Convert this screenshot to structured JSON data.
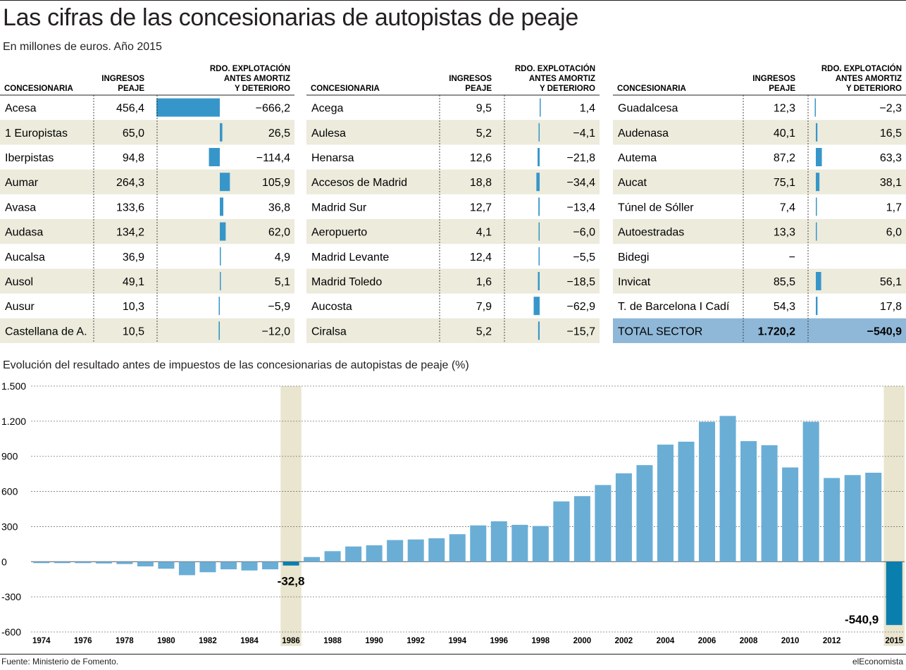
{
  "title": "Las cifras de las concesionarias de autopistas de peaje",
  "subtitle": "En millones de euros. Año 2015",
  "table_headers": {
    "name": "CONCESIONARIA",
    "revenue": [
      "INGRESOS",
      "PEAJE"
    ],
    "result": [
      "RDO. EXPLOTACIÓN",
      "ANTES AMORTIZ",
      "Y DETERIORO"
    ]
  },
  "tables": [
    {
      "rows": [
        {
          "name": "Acesa",
          "revenue": "456,4",
          "result": "−666,2",
          "value": -666.2
        },
        {
          "name": "1 Europistas",
          "revenue": "65,0",
          "result": "26,5",
          "value": 26.5
        },
        {
          "name": "Iberpistas",
          "revenue": "94,8",
          "result": "−114,4",
          "value": -114.4
        },
        {
          "name": "Aumar",
          "revenue": "264,3",
          "result": "105,9",
          "value": 105.9
        },
        {
          "name": "Avasa",
          "revenue": "133,6",
          "result": "36,8",
          "value": 36.8
        },
        {
          "name": "Audasa",
          "revenue": "134,2",
          "result": "62,0",
          "value": 62.0
        },
        {
          "name": "Aucalsa",
          "revenue": "36,9",
          "result": "4,9",
          "value": 4.9
        },
        {
          "name": "Ausol",
          "revenue": "49,1",
          "result": "5,1",
          "value": 5.1
        },
        {
          "name": "Ausur",
          "revenue": "10,3",
          "result": "−5,9",
          "value": -5.9
        },
        {
          "name": "Castellana de A.",
          "revenue": "10,5",
          "result": "−12,0",
          "value": -12.0
        }
      ]
    },
    {
      "rows": [
        {
          "name": "Acega",
          "revenue": "9,5",
          "result": "1,4",
          "value": 1.4
        },
        {
          "name": "Aulesa",
          "revenue": "5,2",
          "result": "−4,1",
          "value": -4.1
        },
        {
          "name": "Henarsa",
          "revenue": "12,6",
          "result": "−21,8",
          "value": -21.8
        },
        {
          "name": "Accesos de Madrid",
          "revenue": "18,8",
          "result": "−34,4",
          "value": -34.4
        },
        {
          "name": "Madrid Sur",
          "revenue": "12,7",
          "result": "−13,4",
          "value": -13.4
        },
        {
          "name": "Aeropuerto",
          "revenue": "4,1",
          "result": "−6,0",
          "value": -6.0
        },
        {
          "name": "Madrid Levante",
          "revenue": "12,4",
          "result": "−5,5",
          "value": -5.5
        },
        {
          "name": "Madrid Toledo",
          "revenue": "1,6",
          "result": "−18,5",
          "value": -18.5
        },
        {
          "name": "Aucosta",
          "revenue": "7,9",
          "result": "−62,9",
          "value": -62.9
        },
        {
          "name": "Ciralsa",
          "revenue": "5,2",
          "result": "−15,7",
          "value": -15.7
        }
      ]
    },
    {
      "rows": [
        {
          "name": "Guadalcesa",
          "revenue": "12,3",
          "result": "−2,3",
          "value": -2.3
        },
        {
          "name": "Audenasa",
          "revenue": "40,1",
          "result": "16,5",
          "value": 16.5
        },
        {
          "name": "Autema",
          "revenue": "87,2",
          "result": "63,3",
          "value": 63.3
        },
        {
          "name": "Aucat",
          "revenue": "75,1",
          "result": "38,1",
          "value": 38.1
        },
        {
          "name": "Túnel de Sóller",
          "revenue": "7,4",
          "result": "1,7",
          "value": 1.7
        },
        {
          "name": "Autoestradas",
          "revenue": "13,3",
          "result": "6,0",
          "value": 6.0
        },
        {
          "name": "Bidegi",
          "revenue": "−",
          "result": "",
          "value": null
        },
        {
          "name": "Invicat",
          "revenue": "85,5",
          "result": "56,1",
          "value": 56.1
        },
        {
          "name": "T. de Barcelona I Cadí",
          "revenue": "54,3",
          "result": "17,8",
          "value": 17.8
        },
        {
          "name": "TOTAL SECTOR",
          "revenue": "1.720,2",
          "result": "−540,9",
          "value": null,
          "total": true
        }
      ]
    }
  ],
  "section_title": "Evolución del resultado antes de impuestos de las concesionarias de autopistas de peaje (%)",
  "source": "Fuente: Ministerio de Fomento.",
  "brand": "elEconomista",
  "colors": {
    "bar": "#6aaed6",
    "highlight_bar": "#0a7fae",
    "table_bar": "#3796c9",
    "row_shade": "#ecebdc",
    "highlight_band": "#e9e5cf",
    "total_bg": "#8fb8d8"
  },
  "chart_data": {
    "type": "bar",
    "title": "Evolución del resultado antes de impuestos de las concesionarias de autopistas de peaje (%)",
    "xlabel": "",
    "ylabel": "",
    "ylim": [
      -600,
      1500
    ],
    "yticks": [
      -600,
      -300,
      0,
      300,
      600,
      900,
      1200,
      1500
    ],
    "ytick_labels": [
      "-600",
      "-300",
      "0",
      "300",
      "600",
      "900",
      "1.200",
      "1.500"
    ],
    "xtick_labels": [
      "1974",
      "1976",
      "1978",
      "1980",
      "1982",
      "1984",
      "1986",
      "1988",
      "1990",
      "1992",
      "1994",
      "1996",
      "1998",
      "2000",
      "2002",
      "2004",
      "2006",
      "2008",
      "2010",
      "2012",
      "2015"
    ],
    "categories": [
      "1974",
      "1975",
      "1976",
      "1977",
      "1978",
      "1979",
      "1980",
      "1981",
      "1982",
      "1983",
      "1984",
      "1985",
      "1986",
      "1987",
      "1988",
      "1989",
      "1990",
      "1991",
      "1992",
      "1993",
      "1994",
      "1995",
      "1996",
      "1997",
      "1998",
      "1999",
      "2000",
      "2001",
      "2002",
      "2003",
      "2004",
      "2005",
      "2006",
      "2007",
      "2008",
      "2009",
      "2010",
      "2011",
      "2012",
      "2013",
      "2014",
      "2015"
    ],
    "values": [
      -12,
      -12,
      -12,
      -15,
      -20,
      -40,
      -60,
      -115,
      -90,
      -65,
      -75,
      -65,
      -32.8,
      40,
      90,
      130,
      140,
      185,
      190,
      200,
      235,
      310,
      345,
      315,
      305,
      515,
      560,
      655,
      755,
      825,
      1000,
      1025,
      1195,
      1245,
      1030,
      995,
      805,
      1195,
      715,
      740,
      760,
      -540.9
    ],
    "highlighted": [
      "1986",
      "2015"
    ],
    "annotations": [
      {
        "category": "1986",
        "label": "-32,8"
      },
      {
        "category": "2015",
        "label": "-540,9"
      }
    ],
    "grid": true
  }
}
